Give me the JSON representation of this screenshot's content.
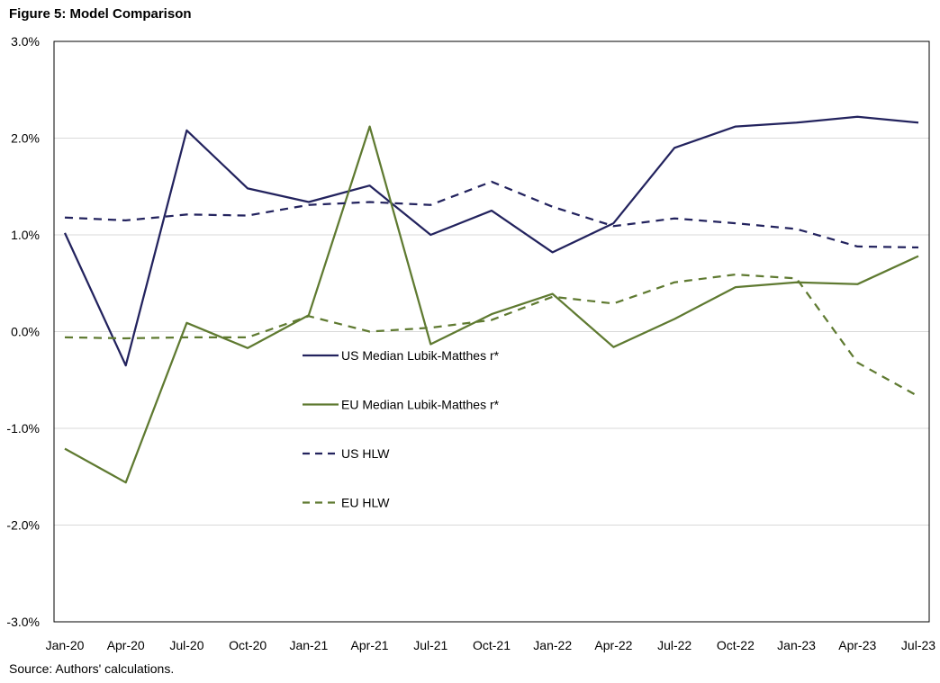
{
  "figure": {
    "title": "Figure 5: Model Comparison",
    "source": "Source: Authors' calculations."
  },
  "chart_data": {
    "type": "line",
    "title": "Figure 5: Model Comparison",
    "xlabel": "",
    "ylabel": "",
    "categories": [
      "Jan-20",
      "Apr-20",
      "Jul-20",
      "Oct-20",
      "Jan-21",
      "Apr-21",
      "Jul-21",
      "Oct-21",
      "Jan-22",
      "Apr-22",
      "Jul-22",
      "Oct-22",
      "Jan-23",
      "Apr-23",
      "Jul-23"
    ],
    "ylim": [
      -3.0,
      3.0
    ],
    "yticks": [
      3.0,
      2.0,
      1.0,
      0.0,
      -1.0,
      -2.0,
      -3.0
    ],
    "ytick_labels": [
      "3.0%",
      "2.0%",
      "1.0%",
      "0.0%",
      "-1.0%",
      "-2.0%",
      "-3.0%"
    ],
    "grid": true,
    "legend_position": "center-left",
    "series": [
      {
        "name": "US Median Lubik-Matthes r*",
        "color": "#23235e",
        "style": "solid",
        "values": [
          1.02,
          -0.35,
          2.08,
          1.48,
          1.34,
          1.51,
          1.0,
          1.25,
          0.82,
          1.12,
          1.9,
          2.12,
          2.16,
          2.22,
          2.16
        ]
      },
      {
        "name": "EU Median Lubik-Matthes r*",
        "color": "#5f7a31",
        "style": "solid",
        "values": [
          -1.21,
          -1.56,
          0.09,
          -0.17,
          0.17,
          2.12,
          -0.13,
          0.18,
          0.39,
          -0.16,
          0.13,
          0.46,
          0.51,
          0.49,
          0.78
        ]
      },
      {
        "name": "US HLW",
        "color": "#23235e",
        "style": "dashed",
        "values": [
          1.18,
          1.15,
          1.21,
          1.2,
          1.31,
          1.34,
          1.31,
          1.55,
          1.29,
          1.09,
          1.17,
          1.12,
          1.06,
          0.88,
          0.87
        ]
      },
      {
        "name": "EU HLW",
        "color": "#5f7a31",
        "style": "dashed",
        "values": [
          -0.06,
          -0.07,
          -0.06,
          -0.06,
          0.16,
          0.0,
          0.04,
          0.12,
          0.36,
          0.29,
          0.51,
          0.59,
          0.55,
          -0.32,
          -0.67
        ]
      }
    ]
  }
}
